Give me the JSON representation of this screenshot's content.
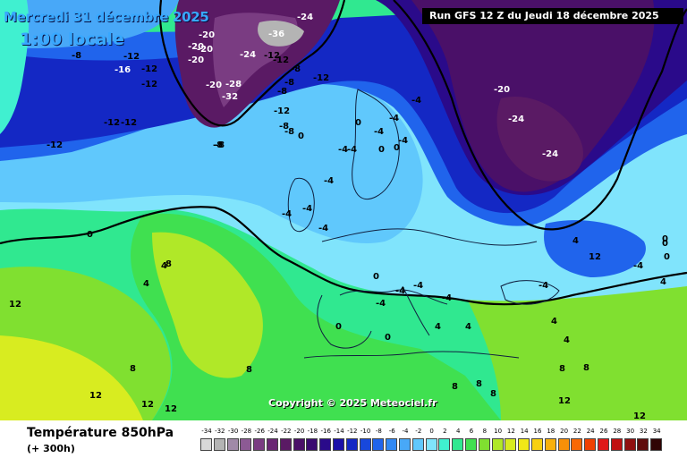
{
  "header": {
    "date_label": "Mercredi 31 décembre 2025",
    "time_label": "1:00 locale",
    "run_label": "Run GFS 12 Z du Jeudi 18 décembre 2025"
  },
  "footer": {
    "title": "Température 850hPa",
    "subtitle": "(+ 300h)"
  },
  "copyright": "Copyright © 2025 Meteociel.fr",
  "legend": {
    "values": [
      "-34",
      "-32",
      "-30",
      "-28",
      "-26",
      "-24",
      "-22",
      "-20",
      "-18",
      "-16",
      "-14",
      "-12",
      "-10",
      "-8",
      "-6",
      "-4",
      "-2",
      "0",
      "2",
      "4",
      "6",
      "8",
      "10",
      "12",
      "14",
      "16",
      "18",
      "20",
      "22",
      "24",
      "26",
      "28",
      "30",
      "32",
      "34"
    ],
    "colors": [
      "#d8d8d8",
      "#b4b4b4",
      "#a08aa8",
      "#8c5a94",
      "#7a3c82",
      "#6a2674",
      "#5a1a64",
      "#4a1068",
      "#3a0a70",
      "#2a0a8a",
      "#1a10a8",
      "#1428c4",
      "#1848dc",
      "#2064ec",
      "#3088f4",
      "#48a8f8",
      "#60c8fc",
      "#80e4fc",
      "#40f0d0",
      "#30e890",
      "#40e050",
      "#80e030",
      "#b0e828",
      "#d8ec20",
      "#f0e818",
      "#f8d010",
      "#f8b00c",
      "#f89008",
      "#f86804",
      "#f04000",
      "#e01818",
      "#c01010",
      "#901010",
      "#600c0c",
      "#300404"
    ]
  },
  "map_labels": [
    {
      "text": "-24"
    },
    {
      "text": "-20"
    },
    {
      "text": "-20"
    },
    {
      "text": "-20"
    },
    {
      "text": "-24"
    },
    {
      "text": "-28"
    },
    {
      "text": "-32"
    },
    {
      "text": "-36"
    },
    {
      "text": "-12"
    },
    {
      "text": "-8"
    },
    {
      "text": "-16"
    },
    {
      "text": "-12"
    },
    {
      "text": "-12"
    },
    {
      "text": "-12"
    },
    {
      "text": "-8"
    },
    {
      "text": "-12"
    },
    {
      "text": "-12"
    },
    {
      "text": "-8"
    },
    {
      "text": "-8"
    },
    {
      "text": "-8"
    },
    {
      "text": "-12"
    },
    {
      "text": "-4"
    },
    {
      "text": "0"
    },
    {
      "text": "0"
    },
    {
      "text": "-4"
    },
    {
      "text": "-4"
    },
    {
      "text": "-4"
    },
    {
      "text": "-4"
    },
    {
      "text": "0"
    },
    {
      "text": "-4"
    },
    {
      "text": "-4"
    },
    {
      "text": "-4"
    },
    {
      "text": "-4"
    },
    {
      "text": "0"
    },
    {
      "text": "-24"
    },
    {
      "text": "-20"
    },
    {
      "text": "-24"
    },
    {
      "text": "-24"
    },
    {
      "text": "-20"
    },
    {
      "text": "-20"
    },
    {
      "text": "-8"
    },
    {
      "text": "-8"
    },
    {
      "text": "-12"
    },
    {
      "text": "-12"
    },
    {
      "text": "-12"
    },
    {
      "text": "-8"
    },
    {
      "text": "-4"
    },
    {
      "text": "0"
    },
    {
      "text": "0"
    },
    {
      "text": "-4"
    },
    {
      "text": "-4"
    },
    {
      "text": "-4"
    },
    {
      "text": "-4"
    },
    {
      "text": "-4"
    },
    {
      "text": "-4"
    },
    {
      "text": "0"
    },
    {
      "text": "0"
    },
    {
      "text": "0"
    },
    {
      "text": "4"
    },
    {
      "text": "4"
    },
    {
      "text": "4"
    },
    {
      "text": "8"
    },
    {
      "text": "8"
    },
    {
      "text": "8"
    },
    {
      "text": "8"
    },
    {
      "text": "8"
    },
    {
      "text": "8"
    },
    {
      "text": "8"
    },
    {
      "text": "8"
    },
    {
      "text": "12"
    },
    {
      "text": "12"
    },
    {
      "text": "12"
    },
    {
      "text": "12"
    },
    {
      "text": "12"
    },
    {
      "text": "12"
    },
    {
      "text": "12"
    },
    {
      "text": "4"
    },
    {
      "text": "4"
    },
    {
      "text": "4"
    },
    {
      "text": "4"
    },
    {
      "text": "4"
    },
    {
      "text": "0"
    },
    {
      "text": "0"
    }
  ]
}
